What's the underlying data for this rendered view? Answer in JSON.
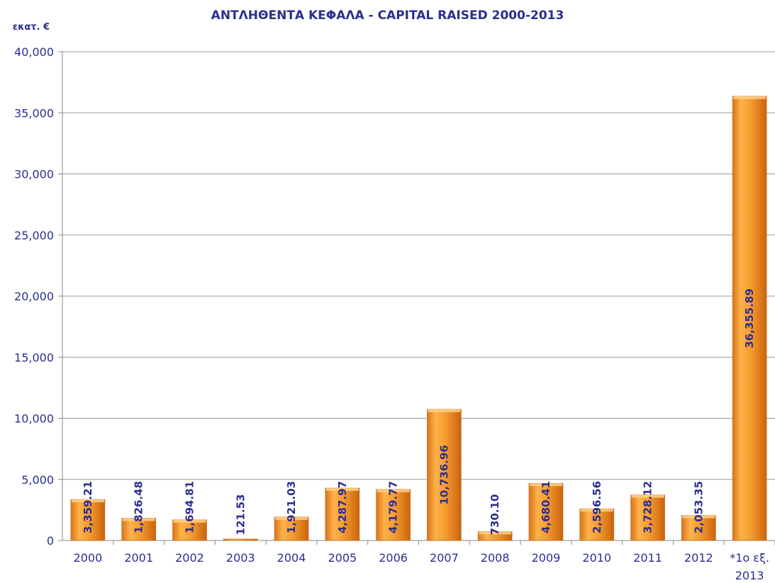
{
  "chart_data": {
    "type": "bar",
    "title": "ΑΝΤΛΗΘΕΝΤΑ ΚΕΦΑΛΑ - CAPITAL RAISED 2000-2013",
    "ylabel": "εκατ. €",
    "xlabel": "",
    "categories": [
      "2000",
      "2001",
      "2002",
      "2003",
      "2004",
      "2005",
      "2006",
      "2007",
      "2008",
      "2009",
      "2010",
      "2011",
      "2012",
      "*1ο εξ. 2013"
    ],
    "values": [
      3359.21,
      1826.48,
      1694.81,
      121.53,
      1921.03,
      4287.97,
      4179.77,
      10736.96,
      730.1,
      4680.41,
      2596.56,
      3728.12,
      2053.35,
      36355.89
    ],
    "value_labels": [
      "3,359.21",
      "1,826.48",
      "1,694.81",
      "121.53",
      "1,921.03",
      "4,287.97",
      "4,179.77",
      "10,736.96",
      "730.10",
      "4,680.41",
      "2,596.56",
      "3,728.12",
      "2,053.35",
      "36,355.89"
    ],
    "ylim": [
      0,
      40000
    ],
    "yticks": [
      0,
      5000,
      10000,
      15000,
      20000,
      25000,
      30000,
      35000,
      40000
    ],
    "ytick_labels": [
      "0",
      "5,000",
      "10,000",
      "15,000",
      "20,000",
      "25,000",
      "30,000",
      "35,000",
      "40,000"
    ],
    "grid": true,
    "colors": {
      "bar": "#f39a2a",
      "bar_dark": "#d06a10",
      "bar_light": "#ffc46a",
      "text": "#2b2f8e",
      "grid": "#999999"
    }
  }
}
